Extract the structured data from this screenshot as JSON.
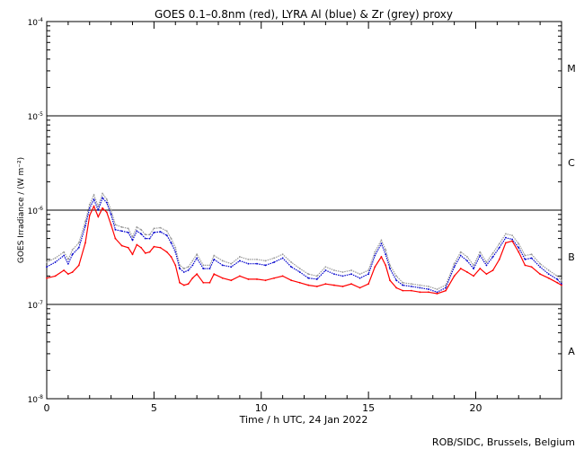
{
  "chart_data": {
    "type": "line",
    "title": "GOES 0.1–0.8nm (red), LYRA Al (blue) & Zr (grey) proxy",
    "xlabel": "Time / h UTC, 24 Jan 2022",
    "ylabel": "GOES Irradiance / (W m⁻²)",
    "credit": "ROB/SIDC, Brussels, Belgium",
    "xlim": [
      0,
      24
    ],
    "ylim": [
      1e-08,
      0.0001
    ],
    "yscale": "log",
    "x_ticks": [
      0,
      5,
      10,
      15,
      20
    ],
    "y_ticks": [
      {
        "value": 1e-08,
        "base": "10",
        "exp": "-8"
      },
      {
        "value": 1e-07,
        "base": "10",
        "exp": "-7"
      },
      {
        "value": 1e-06,
        "base": "10",
        "exp": "-6"
      },
      {
        "value": 1e-05,
        "base": "10",
        "exp": "-5"
      },
      {
        "value": 0.0001,
        "base": "10",
        "exp": "-4"
      }
    ],
    "flare_class_lines": [
      1e-07,
      1e-06,
      1e-05
    ],
    "flare_classes": [
      {
        "label": "A",
        "value": 3.2e-08
      },
      {
        "label": "B",
        "value": 3.2e-07
      },
      {
        "label": "C",
        "value": 3.2e-06
      },
      {
        "label": "M",
        "value": 3.2e-05
      }
    ],
    "series": [
      {
        "color": "#999999",
        "x": [
          0,
          0.4,
          0.8,
          1.0,
          1.2,
          1.5,
          1.8,
          2.0,
          2.2,
          2.4,
          2.6,
          2.8,
          3.0,
          3.2,
          3.5,
          3.8,
          4.0,
          4.2,
          4.4,
          4.6,
          4.8,
          5.0,
          5.3,
          5.6,
          5.8,
          6.0,
          6.2,
          6.4,
          6.6,
          6.8,
          7.0,
          7.3,
          7.6,
          7.8,
          8.2,
          8.6,
          9.0,
          9.4,
          9.8,
          10.2,
          10.6,
          11.0,
          11.4,
          11.8,
          12.2,
          12.6,
          13.0,
          13.4,
          13.8,
          14.2,
          14.6,
          15.0,
          15.3,
          15.6,
          15.8,
          16.0,
          16.3,
          16.6,
          17.0,
          17.4,
          17.8,
          18.2,
          18.6,
          19.0,
          19.3,
          19.6,
          19.9,
          20.2,
          20.5,
          20.8,
          21.1,
          21.4,
          21.7,
          22.0,
          22.3,
          22.6,
          23.0,
          23.4,
          23.8,
          24.0
        ],
        "y": [
          2.8e-07,
          3.1e-07,
          3.6e-07,
          3e-07,
          3.8e-07,
          4.5e-07,
          7.6e-07,
          1.15e-06,
          1.45e-06,
          1.1e-06,
          1.5e-06,
          1.3e-06,
          1e-06,
          7e-07,
          6.6e-07,
          6.4e-07,
          5.2e-07,
          6.6e-07,
          6.2e-07,
          5.5e-07,
          5.5e-07,
          6.4e-07,
          6.5e-07,
          6e-07,
          5e-07,
          4e-07,
          2.6e-07,
          2.4e-07,
          2.5e-07,
          2.9e-07,
          3.4e-07,
          2.6e-07,
          2.6e-07,
          3.3e-07,
          2.9e-07,
          2.7e-07,
          3.2e-07,
          3e-07,
          3e-07,
          2.9e-07,
          3.1e-07,
          3.4e-07,
          2.8e-07,
          2.4e-07,
          2.1e-07,
          2e-07,
          2.5e-07,
          2.3e-07,
          2.2e-07,
          2.3e-07,
          2.1e-07,
          2.3e-07,
          3.6e-07,
          4.8e-07,
          3.8e-07,
          2.6e-07,
          2e-07,
          1.7e-07,
          1.65e-07,
          1.6e-07,
          1.55e-07,
          1.45e-07,
          1.6e-07,
          2.7e-07,
          3.6e-07,
          3.2e-07,
          2.6e-07,
          3.6e-07,
          2.8e-07,
          3.5e-07,
          4.4e-07,
          5.6e-07,
          5.4e-07,
          4.4e-07,
          3.3e-07,
          3.4e-07,
          2.7e-07,
          2.3e-07,
          2e-07,
          1.8e-07
        ]
      },
      {
        "color": "#0000cc",
        "x": [
          0,
          0.4,
          0.8,
          1.0,
          1.2,
          1.5,
          1.8,
          2.0,
          2.2,
          2.4,
          2.6,
          2.8,
          3.0,
          3.2,
          3.5,
          3.8,
          4.0,
          4.2,
          4.4,
          4.6,
          4.8,
          5.0,
          5.3,
          5.6,
          5.8,
          6.0,
          6.2,
          6.4,
          6.6,
          6.8,
          7.0,
          7.3,
          7.6,
          7.8,
          8.2,
          8.6,
          9.0,
          9.4,
          9.8,
          10.2,
          10.6,
          11.0,
          11.4,
          11.8,
          12.2,
          12.6,
          13.0,
          13.4,
          13.8,
          14.2,
          14.6,
          15.0,
          15.3,
          15.6,
          15.8,
          16.0,
          16.3,
          16.6,
          17.0,
          17.4,
          17.8,
          18.2,
          18.6,
          19.0,
          19.3,
          19.6,
          19.9,
          20.2,
          20.5,
          20.8,
          21.1,
          21.4,
          21.7,
          22.0,
          22.3,
          22.6,
          23.0,
          23.4,
          23.8,
          24.0
        ],
        "y": [
          2.5e-07,
          2.8e-07,
          3.3e-07,
          2.7e-07,
          3.4e-07,
          4e-07,
          6.8e-07,
          1.05e-06,
          1.3e-06,
          1e-06,
          1.35e-06,
          1.2e-06,
          9e-07,
          6.2e-07,
          6e-07,
          5.8e-07,
          4.8e-07,
          6e-07,
          5.6e-07,
          5e-07,
          5e-07,
          5.8e-07,
          5.9e-07,
          5.4e-07,
          4.5e-07,
          3.6e-07,
          2.4e-07,
          2.2e-07,
          2.3e-07,
          2.6e-07,
          3.1e-07,
          2.4e-07,
          2.4e-07,
          3e-07,
          2.6e-07,
          2.5e-07,
          2.9e-07,
          2.7e-07,
          2.7e-07,
          2.6e-07,
          2.8e-07,
          3.1e-07,
          2.5e-07,
          2.2e-07,
          1.9e-07,
          1.85e-07,
          2.3e-07,
          2.1e-07,
          2e-07,
          2.1e-07,
          1.9e-07,
          2.1e-07,
          3.3e-07,
          4.4e-07,
          3.4e-07,
          2.4e-07,
          1.8e-07,
          1.6e-07,
          1.55e-07,
          1.5e-07,
          1.45e-07,
          1.35e-07,
          1.5e-07,
          2.5e-07,
          3.3e-07,
          2.9e-07,
          2.4e-07,
          3.3e-07,
          2.6e-07,
          3.2e-07,
          4e-07,
          5.1e-07,
          4.9e-07,
          4e-07,
          3e-07,
          3.1e-07,
          2.5e-07,
          2.1e-07,
          1.85e-07,
          1.65e-07
        ]
      },
      {
        "color": "#ff0000",
        "x": [
          0,
          0.4,
          0.8,
          1.0,
          1.2,
          1.5,
          1.8,
          2.0,
          2.2,
          2.4,
          2.6,
          2.8,
          3.0,
          3.2,
          3.5,
          3.8,
          4.0,
          4.2,
          4.4,
          4.6,
          4.8,
          5.0,
          5.3,
          5.6,
          5.8,
          6.0,
          6.2,
          6.4,
          6.6,
          6.8,
          7.0,
          7.3,
          7.6,
          7.8,
          8.2,
          8.6,
          9.0,
          9.4,
          9.8,
          10.2,
          10.6,
          11.0,
          11.4,
          11.8,
          12.2,
          12.6,
          13.0,
          13.4,
          13.8,
          14.2,
          14.6,
          15.0,
          15.3,
          15.6,
          15.8,
          16.0,
          16.3,
          16.6,
          17.0,
          17.4,
          17.8,
          18.2,
          18.6,
          19.0,
          19.3,
          19.6,
          19.9,
          20.2,
          20.5,
          20.8,
          21.1,
          21.4,
          21.7,
          22.0,
          22.3,
          22.6,
          23.0,
          23.4,
          23.8,
          24.0
        ],
        "y": [
          1.9e-07,
          2e-07,
          2.3e-07,
          2.1e-07,
          2.2e-07,
          2.6e-07,
          4.5e-07,
          8.8e-07,
          1.1e-06,
          8.5e-07,
          1.05e-06,
          9.5e-07,
          7e-07,
          5e-07,
          4.2e-07,
          4e-07,
          3.4e-07,
          4.3e-07,
          4e-07,
          3.5e-07,
          3.6e-07,
          4.1e-07,
          4e-07,
          3.6e-07,
          3.2e-07,
          2.6e-07,
          1.7e-07,
          1.6e-07,
          1.65e-07,
          1.9e-07,
          2.1e-07,
          1.7e-07,
          1.7e-07,
          2.1e-07,
          1.9e-07,
          1.8e-07,
          2e-07,
          1.85e-07,
          1.85e-07,
          1.8e-07,
          1.9e-07,
          2e-07,
          1.8e-07,
          1.7e-07,
          1.6e-07,
          1.55e-07,
          1.65e-07,
          1.6e-07,
          1.55e-07,
          1.65e-07,
          1.5e-07,
          1.65e-07,
          2.5e-07,
          3.2e-07,
          2.6e-07,
          1.8e-07,
          1.5e-07,
          1.4e-07,
          1.4e-07,
          1.35e-07,
          1.35e-07,
          1.3e-07,
          1.4e-07,
          2e-07,
          2.4e-07,
          2.2e-07,
          2e-07,
          2.4e-07,
          2.1e-07,
          2.3e-07,
          3e-07,
          4.5e-07,
          4.7e-07,
          3.6e-07,
          2.6e-07,
          2.5e-07,
          2.1e-07,
          1.9e-07,
          1.7e-07,
          1.6e-07
        ]
      }
    ]
  }
}
